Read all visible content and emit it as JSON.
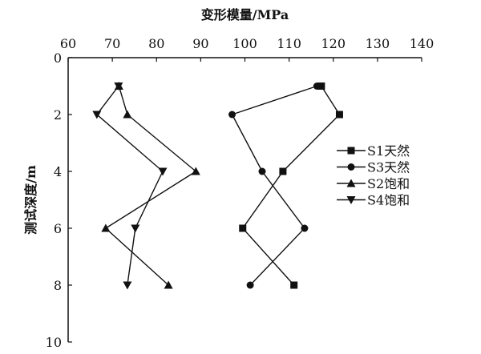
{
  "chart_data": {
    "type": "line",
    "title": "",
    "xlabel": "变形模量/MPa",
    "ylabel": "测试深度/m",
    "xlim": [
      60,
      140
    ],
    "ylim": [
      0,
      10
    ],
    "x_axis_position": "top",
    "y_axis_inverted": true,
    "xticks": [
      60,
      70,
      80,
      90,
      100,
      110,
      120,
      130,
      140
    ],
    "yticks": [
      0,
      2,
      4,
      6,
      8,
      10
    ],
    "grid": false,
    "legend_position": "right",
    "series": [
      {
        "name": "S1天然",
        "marker": "square",
        "points": [
          [
            117.3,
            1
          ],
          [
            121.4,
            2
          ],
          [
            108.6,
            4
          ],
          [
            99.5,
            6
          ],
          [
            111.1,
            8
          ]
        ]
      },
      {
        "name": "S3天然",
        "marker": "circle",
        "points": [
          [
            116.3,
            1
          ],
          [
            97.1,
            2
          ],
          [
            103.9,
            4
          ],
          [
            113.5,
            6
          ],
          [
            101.2,
            8
          ]
        ]
      },
      {
        "name": "S2饱和",
        "marker": "triangle-up",
        "points": [
          [
            71.5,
            1
          ],
          [
            73.4,
            2
          ],
          [
            88.9,
            4
          ],
          [
            68.5,
            6
          ],
          [
            82.7,
            8
          ]
        ]
      },
      {
        "name": "S4饱和",
        "marker": "triangle-down",
        "points": [
          [
            71.4,
            1
          ],
          [
            66.5,
            2
          ],
          [
            81.4,
            4
          ],
          [
            75.2,
            6
          ],
          [
            73.4,
            8
          ]
        ]
      }
    ],
    "colors": {
      "line": "#111111"
    }
  }
}
